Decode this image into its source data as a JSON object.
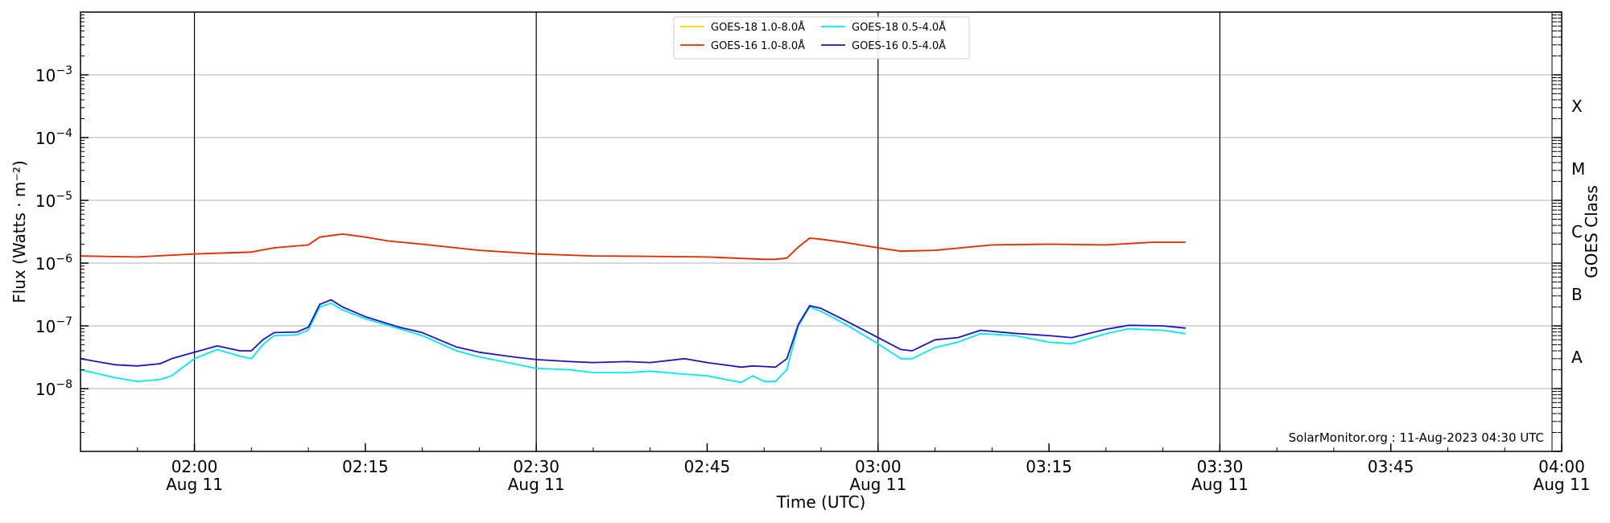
{
  "chart_data": {
    "type": "line",
    "xlabel": "Time (UTC)",
    "ylabel": "Flux (Watts · m⁻²)",
    "right_axis_label": "GOES Class",
    "credit": "SolarMonitor.org : 11-Aug-2023 04:30 UTC",
    "y_scale": "log",
    "ylim": [
      1e-09,
      0.01
    ],
    "x_range": [
      "01:50",
      "04:00"
    ],
    "y_ticks": [
      {
        "value": 1e-08,
        "base": "10",
        "exp": "−8"
      },
      {
        "value": 1e-07,
        "base": "10",
        "exp": "−7"
      },
      {
        "value": 1e-06,
        "base": "10",
        "exp": "−6"
      },
      {
        "value": 1e-05,
        "base": "10",
        "exp": "−5"
      },
      {
        "value": 0.0001,
        "base": "10",
        "exp": "−4"
      },
      {
        "value": 0.001,
        "base": "10",
        "exp": "−3"
      }
    ],
    "x_ticks": [
      {
        "time": "02:00",
        "label": "02:00",
        "sub": "Aug 11"
      },
      {
        "time": "02:15",
        "label": "02:15",
        "sub": ""
      },
      {
        "time": "02:30",
        "label": "02:30",
        "sub": "Aug 11"
      },
      {
        "time": "02:45",
        "label": "02:45",
        "sub": ""
      },
      {
        "time": "03:00",
        "label": "03:00",
        "sub": "Aug 11"
      },
      {
        "time": "03:15",
        "label": "03:15",
        "sub": ""
      },
      {
        "time": "03:30",
        "label": "03:30",
        "sub": "Aug 11"
      },
      {
        "time": "03:45",
        "label": "03:45",
        "sub": ""
      },
      {
        "time": "04:00",
        "label": "04:00",
        "sub": "Aug 11"
      }
    ],
    "vertical_lines": [
      "02:00",
      "02:30",
      "03:00",
      "03:30"
    ],
    "goes_classes": [
      {
        "label": "A",
        "value": 3.16e-08
      },
      {
        "label": "B",
        "value": 3.16e-07
      },
      {
        "label": "C",
        "value": 3.16e-06
      },
      {
        "label": "M",
        "value": 3.16e-05
      },
      {
        "label": "X",
        "value": 0.000316
      }
    ],
    "legend": {
      "placement": "top-center",
      "columns": 2
    },
    "series": [
      {
        "name": "GOES-18 1.0-8.0Å",
        "color": "#ffd700",
        "x": [
          "01:50",
          "01:55",
          "02:00",
          "02:05",
          "02:07",
          "02:10",
          "02:11",
          "02:13",
          "02:15",
          "02:17",
          "02:20",
          "02:25",
          "02:30",
          "02:35",
          "02:40",
          "02:45",
          "02:50",
          "02:51",
          "02:52",
          "02:53",
          "02:54",
          "02:55",
          "02:57",
          "03:00",
          "03:02",
          "03:05",
          "03:10",
          "03:15",
          "03:20",
          "03:24",
          "03:27"
        ],
        "values": [
          1.3e-06,
          1.25e-06,
          1.4e-06,
          1.5e-06,
          1.75e-06,
          1.95e-06,
          2.6e-06,
          2.9e-06,
          2.6e-06,
          2.25e-06,
          2e-06,
          1.6e-06,
          1.4e-06,
          1.3e-06,
          1.28e-06,
          1.25e-06,
          1.15e-06,
          1.15e-06,
          1.2e-06,
          1.8e-06,
          2.5e-06,
          2.4e-06,
          2.15e-06,
          1.75e-06,
          1.55e-06,
          1.6e-06,
          1.95e-06,
          2e-06,
          1.95e-06,
          2.15e-06,
          2.15e-06
        ]
      },
      {
        "name": "GOES-16 1.0-8.0Å",
        "color": "#e8280a",
        "x": [
          "01:50",
          "01:55",
          "02:00",
          "02:05",
          "02:07",
          "02:10",
          "02:11",
          "02:13",
          "02:15",
          "02:17",
          "02:20",
          "02:25",
          "02:30",
          "02:35",
          "02:40",
          "02:45",
          "02:50",
          "02:51",
          "02:52",
          "02:53",
          "02:54",
          "02:55",
          "02:57",
          "03:00",
          "03:02",
          "03:05",
          "03:10",
          "03:15",
          "03:20",
          "03:24",
          "03:27"
        ],
        "values": [
          1.3e-06,
          1.25e-06,
          1.4e-06,
          1.5e-06,
          1.75e-06,
          1.95e-06,
          2.6e-06,
          2.9e-06,
          2.6e-06,
          2.25e-06,
          2e-06,
          1.6e-06,
          1.4e-06,
          1.3e-06,
          1.28e-06,
          1.25e-06,
          1.15e-06,
          1.15e-06,
          1.2e-06,
          1.8e-06,
          2.5e-06,
          2.4e-06,
          2.15e-06,
          1.75e-06,
          1.55e-06,
          1.6e-06,
          1.95e-06,
          2e-06,
          1.95e-06,
          2.15e-06,
          2.15e-06
        ]
      },
      {
        "name": "GOES-18 0.5-4.0Å",
        "color": "#00e8f0",
        "x": [
          "01:50",
          "01:53",
          "01:55",
          "01:57",
          "01:58",
          "02:00",
          "02:02",
          "02:04",
          "02:05",
          "02:06",
          "02:07",
          "02:09",
          "02:10",
          "02:11",
          "02:12",
          "02:13",
          "02:15",
          "02:18",
          "02:20",
          "02:23",
          "02:25",
          "02:28",
          "02:30",
          "02:33",
          "02:35",
          "02:38",
          "02:40",
          "02:43",
          "02:45",
          "02:48",
          "02:49",
          "02:50",
          "02:51",
          "02:52",
          "02:53",
          "02:54",
          "02:55",
          "02:57",
          "03:00",
          "03:02",
          "03:03",
          "03:05",
          "03:07",
          "03:09",
          "03:12",
          "03:15",
          "03:17",
          "03:20",
          "03:22",
          "03:25",
          "03:27"
        ],
        "values": [
          2e-08,
          1.5e-08,
          1.3e-08,
          1.4e-08,
          1.6e-08,
          3e-08,
          4.2e-08,
          3.3e-08,
          3e-08,
          5e-08,
          7e-08,
          7.2e-08,
          8.5e-08,
          2e-07,
          2.3e-07,
          1.8e-07,
          1.3e-07,
          9e-08,
          7e-08,
          4e-08,
          3.2e-08,
          2.5e-08,
          2.1e-08,
          2e-08,
          1.8e-08,
          1.8e-08,
          1.9e-08,
          1.7e-08,
          1.6e-08,
          1.25e-08,
          1.6e-08,
          1.3e-08,
          1.3e-08,
          2e-08,
          1e-07,
          2e-07,
          1.7e-07,
          1.1e-07,
          5.2e-08,
          3e-08,
          3e-08,
          4.5e-08,
          5.5e-08,
          7.5e-08,
          7e-08,
          5.5e-08,
          5.2e-08,
          7.5e-08,
          9e-08,
          8.5e-08,
          7.5e-08
        ]
      },
      {
        "name": "GOES-16 0.5-4.0Å",
        "color": "#1a14c8",
        "x": [
          "01:50",
          "01:53",
          "01:55",
          "01:57",
          "01:58",
          "02:00",
          "02:02",
          "02:04",
          "02:05",
          "02:06",
          "02:07",
          "02:09",
          "02:10",
          "02:11",
          "02:12",
          "02:13",
          "02:15",
          "02:18",
          "02:20",
          "02:23",
          "02:25",
          "02:28",
          "02:30",
          "02:33",
          "02:35",
          "02:38",
          "02:40",
          "02:43",
          "02:45",
          "02:48",
          "02:49",
          "02:50",
          "02:51",
          "02:52",
          "02:53",
          "02:54",
          "02:55",
          "02:57",
          "03:00",
          "03:02",
          "03:03",
          "03:05",
          "03:07",
          "03:09",
          "03:12",
          "03:15",
          "03:17",
          "03:20",
          "03:22",
          "03:25",
          "03:27"
        ],
        "values": [
          3e-08,
          2.4e-08,
          2.3e-08,
          2.5e-08,
          3e-08,
          3.8e-08,
          4.8e-08,
          4e-08,
          4e-08,
          6e-08,
          7.8e-08,
          8e-08,
          9.5e-08,
          2.2e-07,
          2.6e-07,
          2e-07,
          1.4e-07,
          9.5e-08,
          7.8e-08,
          4.6e-08,
          3.8e-08,
          3.2e-08,
          2.9e-08,
          2.7e-08,
          2.6e-08,
          2.7e-08,
          2.6e-08,
          3e-08,
          2.6e-08,
          2.2e-08,
          2.3e-08,
          2.25e-08,
          2.2e-08,
          3e-08,
          1.05e-07,
          2.1e-07,
          1.9e-07,
          1.25e-07,
          6.5e-08,
          4.2e-08,
          4e-08,
          6e-08,
          6.5e-08,
          8.5e-08,
          7.6e-08,
          7e-08,
          6.5e-08,
          8.8e-08,
          1.02e-07,
          1e-07,
          9.2e-08
        ]
      }
    ]
  }
}
